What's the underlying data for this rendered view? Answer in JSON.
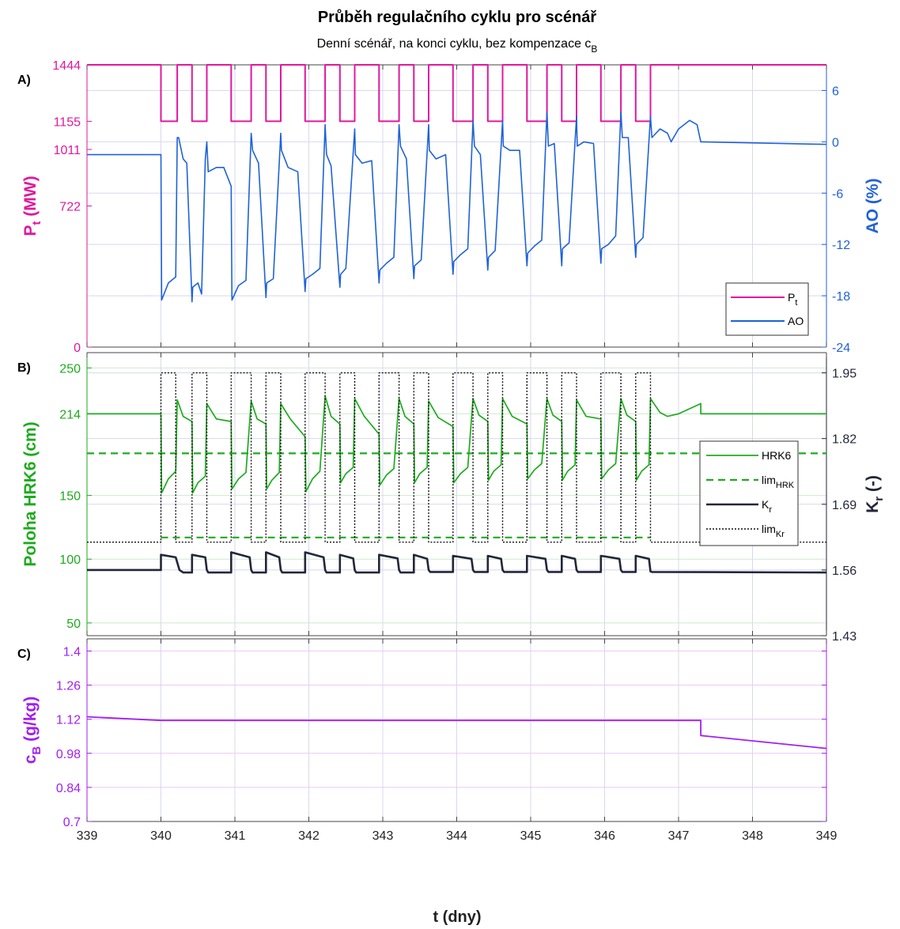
{
  "title": "Průběh regulačního cyklu pro scénář",
  "subtitle": "Denní scénář, na konci cyklu, bez kompenzace c",
  "subtitle_sub": "B",
  "xlabel": "t (dny)",
  "colors": {
    "pt": "#e0189c",
    "ao": "#1f62d8",
    "hrk": "#1eab1e",
    "kr": "#23263a",
    "cb": "#a020f0",
    "grid": "#d8d8ee"
  },
  "chart_data": [
    {
      "panel": "A)",
      "type": "line",
      "xlim": [
        339,
        349
      ],
      "xticks": [
        339,
        340,
        341,
        342,
        343,
        344,
        345,
        346,
        347,
        348,
        349
      ],
      "grid": true,
      "legend_position": "bottom-right",
      "left_axis": {
        "label": "P",
        "label_sub": "t",
        "label_suffix": " (MW)",
        "ylim": [
          0,
          1444
        ],
        "ticks": [
          0,
          722,
          1011,
          1155,
          1444
        ]
      },
      "right_axis": {
        "label": "AO (%)",
        "ylim": [
          -24,
          9
        ],
        "ticks": [
          -24,
          -18,
          -12,
          -6,
          0,
          6
        ]
      },
      "series": [
        {
          "name": "P",
          "name_sub": "t",
          "axis": "left",
          "x": [
            339,
            340,
            340,
            340.22,
            340.22,
            340.42,
            340.42,
            340.62,
            340.62,
            340.95,
            340.95,
            341.22,
            341.22,
            341.42,
            341.42,
            341.62,
            341.62,
            341.95,
            341.95,
            342.22,
            342.22,
            342.42,
            342.42,
            342.62,
            342.62,
            342.95,
            342.95,
            343.22,
            343.22,
            343.42,
            343.42,
            343.62,
            343.62,
            343.95,
            343.95,
            344.22,
            344.22,
            344.42,
            344.42,
            344.62,
            344.62,
            344.95,
            344.95,
            345.22,
            345.22,
            345.42,
            345.42,
            345.62,
            345.62,
            345.95,
            345.95,
            346.22,
            346.22,
            346.42,
            346.42,
            346.62,
            346.62,
            349
          ],
          "y": [
            1444,
            1444,
            1155,
            1155,
            1444,
            1444,
            1155,
            1155,
            1444,
            1444,
            1155,
            1155,
            1444,
            1444,
            1155,
            1155,
            1444,
            1444,
            1155,
            1155,
            1444,
            1444,
            1155,
            1155,
            1444,
            1444,
            1155,
            1155,
            1444,
            1444,
            1155,
            1155,
            1444,
            1444,
            1155,
            1155,
            1444,
            1444,
            1155,
            1155,
            1444,
            1444,
            1155,
            1155,
            1444,
            1444,
            1155,
            1155,
            1444,
            1444,
            1155,
            1155,
            1444,
            1444,
            1155,
            1155,
            1444,
            1444
          ]
        },
        {
          "name": "AO",
          "axis": "right",
          "x": [
            339,
            340,
            340.01,
            340.1,
            340.2,
            340.22,
            340.24,
            340.3,
            340.35,
            340.42,
            340.43,
            340.5,
            340.55,
            340.6,
            340.62,
            340.64,
            340.75,
            340.85,
            340.95,
            340.96,
            341.05,
            341.15,
            341.22,
            341.24,
            341.32,
            341.42,
            341.43,
            341.52,
            341.62,
            341.63,
            341.72,
            341.85,
            341.95,
            341.96,
            342.05,
            342.15,
            342.22,
            342.24,
            342.3,
            342.42,
            342.43,
            342.5,
            342.62,
            342.63,
            342.72,
            342.85,
            342.95,
            342.96,
            343.05,
            343.15,
            343.22,
            343.24,
            343.32,
            343.42,
            343.43,
            343.52,
            343.62,
            343.63,
            343.72,
            343.85,
            343.95,
            343.96,
            344.05,
            344.15,
            344.22,
            344.24,
            344.32,
            344.42,
            344.43,
            344.52,
            344.62,
            344.63,
            344.72,
            344.85,
            344.95,
            344.96,
            345.05,
            345.15,
            345.22,
            345.24,
            345.32,
            345.42,
            345.43,
            345.52,
            345.62,
            345.63,
            345.72,
            345.85,
            345.95,
            345.96,
            346.05,
            346.15,
            346.22,
            346.24,
            346.32,
            346.42,
            346.43,
            346.52,
            346.62,
            346.64,
            346.75,
            346.85,
            346.9,
            347.0,
            347.15,
            347.25,
            347.3,
            349
          ],
          "y": [
            -1.5,
            -1.5,
            -18.5,
            -16.5,
            -15.8,
            0.5,
            0.5,
            -2.0,
            -2.5,
            -18.7,
            -17.0,
            -16.5,
            -17.8,
            -2.0,
            0,
            -3.5,
            -3.0,
            -3.0,
            -5.2,
            -18.5,
            -16.8,
            -16.2,
            1.0,
            -1.0,
            -2.5,
            -18.2,
            -16.5,
            -16.0,
            1.0,
            -1.0,
            -3.0,
            -3.5,
            -17.5,
            -16.0,
            -15.5,
            -14.8,
            2.0,
            -1.5,
            -2.8,
            -17.0,
            -15.5,
            -14.8,
            1.5,
            -1.5,
            -2.5,
            -2.2,
            -16.5,
            -15.0,
            -14.2,
            -13.5,
            2.0,
            -0.5,
            -2.0,
            -16.0,
            -14.5,
            -13.8,
            2.0,
            -1.0,
            -2.0,
            -1.5,
            -15.5,
            -14.0,
            -13.2,
            -12.5,
            2.5,
            -0.5,
            -1.5,
            -15.0,
            -13.5,
            -12.7,
            2.5,
            -0.5,
            -1.0,
            -1.0,
            -14.5,
            -13.0,
            -12.2,
            -11.5,
            3.5,
            -0.5,
            -0.2,
            -14.5,
            -12.5,
            -11.8,
            3.0,
            -0.5,
            0.0,
            -0.2,
            -14.2,
            -12.5,
            -12.0,
            -11.0,
            3.5,
            0.5,
            0.5,
            -13.5,
            -12.0,
            -11.2,
            3.0,
            0.5,
            1.5,
            1.0,
            0,
            1.5,
            2.5,
            2.0,
            0,
            -0.3
          ]
        }
      ]
    },
    {
      "panel": "B)",
      "type": "line",
      "xlim": [
        339,
        349
      ],
      "xticks": [
        339,
        340,
        341,
        342,
        343,
        344,
        345,
        346,
        347,
        348,
        349
      ],
      "grid": true,
      "legend_position": "right",
      "left_axis": {
        "label": "Poloha HRK6 (cm)",
        "ylim": [
          40,
          262
        ],
        "ticks": [
          50,
          100,
          150,
          214,
          250
        ]
      },
      "right_axis": {
        "label": "K",
        "label_sub": "r",
        "label_suffix": " (-)",
        "ylim": [
          1.43,
          1.99
        ],
        "ticks": [
          1.43,
          1.56,
          1.69,
          1.82,
          1.95
        ]
      },
      "series": [
        {
          "name": "HRK6",
          "axis": "left",
          "x": [
            339,
            340,
            340.01,
            340.1,
            340.2,
            340.22,
            340.3,
            340.42,
            340.43,
            340.5,
            340.6,
            340.62,
            340.75,
            340.95,
            340.96,
            341.05,
            341.15,
            341.22,
            341.3,
            341.42,
            341.43,
            341.5,
            341.6,
            341.62,
            341.75,
            341.95,
            341.96,
            342.05,
            342.15,
            342.22,
            342.3,
            342.42,
            342.43,
            342.5,
            342.6,
            342.62,
            342.75,
            342.95,
            342.96,
            343.05,
            343.15,
            343.22,
            343.3,
            343.42,
            343.43,
            343.5,
            343.6,
            343.62,
            343.75,
            343.95,
            343.96,
            344.05,
            344.15,
            344.22,
            344.3,
            344.42,
            344.43,
            344.5,
            344.6,
            344.62,
            344.75,
            344.95,
            344.96,
            345.05,
            345.15,
            345.22,
            345.3,
            345.42,
            345.43,
            345.5,
            345.6,
            345.62,
            345.75,
            345.95,
            345.96,
            346.05,
            346.15,
            346.22,
            346.3,
            346.42,
            346.43,
            346.5,
            346.6,
            346.62,
            346.75,
            346.85,
            347.0,
            347.3,
            347.3,
            349
          ],
          "y": [
            214,
            214,
            152,
            163,
            169,
            225,
            212,
            208,
            152,
            160,
            165,
            222,
            210,
            208,
            155,
            163,
            168,
            224,
            210,
            206,
            155,
            162,
            168,
            222,
            210,
            196,
            153,
            163,
            169,
            228,
            212,
            206,
            160,
            167,
            172,
            226,
            212,
            198,
            158,
            166,
            171,
            226,
            212,
            206,
            160,
            167,
            172,
            224,
            211,
            204,
            160,
            167,
            172,
            226,
            213,
            208,
            162,
            169,
            174,
            226,
            212,
            206,
            163,
            170,
            175,
            226,
            213,
            208,
            162,
            169,
            174,
            225,
            212,
            210,
            163,
            170,
            175,
            226,
            213,
            208,
            162,
            169,
            174,
            226,
            215,
            212,
            214,
            222,
            214,
            214
          ]
        },
        {
          "name": "lim",
          "name_sub": "HRK",
          "axis": "left",
          "style": "dashed",
          "segments": [
            {
              "x": [
                339,
                349
              ],
              "y": [
                183,
                183
              ]
            },
            {
              "x": [
                340,
                346.62
              ],
              "y": [
                117,
                117
              ]
            }
          ]
        },
        {
          "name": "K",
          "name_sub": "r",
          "axis": "right",
          "x": [
            339,
            340,
            340,
            340.2,
            340.25,
            340.3,
            340.42,
            340.42,
            340.6,
            340.62,
            340.64,
            340.95,
            340.95,
            341.2,
            341.22,
            341.24,
            341.42,
            341.42,
            341.6,
            341.62,
            341.64,
            341.95,
            341.95,
            342.2,
            342.22,
            342.24,
            342.42,
            342.42,
            342.6,
            342.62,
            342.64,
            342.95,
            342.95,
            343.2,
            343.22,
            343.24,
            343.42,
            343.42,
            343.6,
            343.62,
            343.64,
            343.95,
            343.95,
            344.2,
            344.22,
            344.24,
            344.42,
            344.42,
            344.6,
            344.62,
            344.64,
            344.95,
            344.95,
            345.2,
            345.22,
            345.24,
            345.42,
            345.42,
            345.6,
            345.62,
            345.64,
            345.95,
            345.95,
            346.2,
            346.22,
            346.24,
            346.42,
            346.42,
            346.6,
            346.62,
            346.64,
            349
          ],
          "y": [
            1.56,
            1.56,
            1.59,
            1.585,
            1.56,
            1.555,
            1.555,
            1.59,
            1.585,
            1.56,
            1.555,
            1.555,
            1.595,
            1.585,
            1.56,
            1.555,
            1.555,
            1.595,
            1.585,
            1.56,
            1.555,
            1.555,
            1.595,
            1.585,
            1.56,
            1.555,
            1.555,
            1.59,
            1.583,
            1.56,
            1.555,
            1.555,
            1.59,
            1.583,
            1.56,
            1.555,
            1.555,
            1.59,
            1.582,
            1.56,
            1.556,
            1.556,
            1.588,
            1.582,
            1.56,
            1.556,
            1.556,
            1.588,
            1.582,
            1.56,
            1.556,
            1.556,
            1.588,
            1.582,
            1.56,
            1.556,
            1.556,
            1.588,
            1.582,
            1.56,
            1.556,
            1.556,
            1.588,
            1.582,
            1.56,
            1.556,
            1.556,
            1.588,
            1.582,
            1.557,
            1.556,
            1.555
          ]
        },
        {
          "name": "lim",
          "name_sub": "Kr",
          "axis": "right",
          "style": "dotted",
          "x": [
            339,
            340,
            340,
            340.2,
            340.2,
            340.42,
            340.42,
            340.62,
            340.62,
            340.95,
            340.95,
            341.22,
            341.22,
            341.42,
            341.42,
            341.62,
            341.62,
            341.95,
            341.95,
            342.22,
            342.22,
            342.42,
            342.42,
            342.62,
            342.62,
            342.95,
            342.95,
            343.22,
            343.22,
            343.42,
            343.42,
            343.62,
            343.62,
            343.95,
            343.95,
            344.22,
            344.22,
            344.42,
            344.42,
            344.62,
            344.62,
            344.95,
            344.95,
            345.22,
            345.22,
            345.42,
            345.42,
            345.62,
            345.62,
            345.95,
            345.95,
            346.22,
            346.22,
            346.42,
            346.42,
            346.62,
            346.62,
            349
          ],
          "y": [
            1.615,
            1.615,
            1.95,
            1.95,
            1.615,
            1.615,
            1.95,
            1.95,
            1.615,
            1.615,
            1.95,
            1.95,
            1.615,
            1.615,
            1.95,
            1.95,
            1.615,
            1.615,
            1.95,
            1.95,
            1.615,
            1.615,
            1.95,
            1.95,
            1.615,
            1.615,
            1.95,
            1.95,
            1.615,
            1.615,
            1.95,
            1.95,
            1.615,
            1.615,
            1.95,
            1.95,
            1.615,
            1.615,
            1.95,
            1.95,
            1.615,
            1.615,
            1.95,
            1.95,
            1.615,
            1.615,
            1.95,
            1.95,
            1.615,
            1.615,
            1.95,
            1.95,
            1.615,
            1.615,
            1.95,
            1.95,
            1.615,
            1.615
          ]
        }
      ]
    },
    {
      "panel": "C)",
      "type": "line",
      "xlim": [
        339,
        349
      ],
      "xticks": [
        339,
        340,
        341,
        342,
        343,
        344,
        345,
        346,
        347,
        348,
        349
      ],
      "grid": true,
      "left_axis": {
        "label": "c",
        "label_sub": "B",
        "label_suffix": " (g/kg)",
        "ylim": [
          0.7,
          1.45
        ],
        "ticks": [
          0.7,
          0.84,
          0.98,
          1.12,
          1.26,
          1.4
        ]
      },
      "series": [
        {
          "name": "c_B",
          "axis": "left",
          "x": [
            339,
            340,
            347.3,
            347.3,
            349
          ],
          "y": [
            1.13,
            1.115,
            1.115,
            1.053,
            1.0
          ]
        }
      ]
    }
  ]
}
